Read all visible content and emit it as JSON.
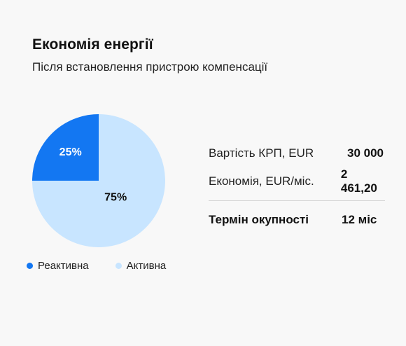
{
  "title": "Економія енергії",
  "subtitle": "Після встановлення пристрою компенсації",
  "colors": {
    "reactive": "#1377f2",
    "active": "#c8e5ff"
  },
  "chart_data": {
    "type": "pie",
    "categories": [
      "Реактивна",
      "Активна"
    ],
    "values": [
      25,
      75
    ],
    "data_labels": [
      "25%",
      "75%"
    ],
    "legend_position": "bottom-left"
  },
  "legend": [
    {
      "label": "Реактивна",
      "color": "#1377f2"
    },
    {
      "label": "Активна",
      "color": "#c8e5ff"
    }
  ],
  "stats": [
    {
      "label": "Вартість КРП, EUR",
      "value": "30 000"
    },
    {
      "label": "Економія, EUR/міс.",
      "value": "2 461,20"
    }
  ],
  "payback": {
    "label": "Термін окупності",
    "value": "12 міс"
  }
}
